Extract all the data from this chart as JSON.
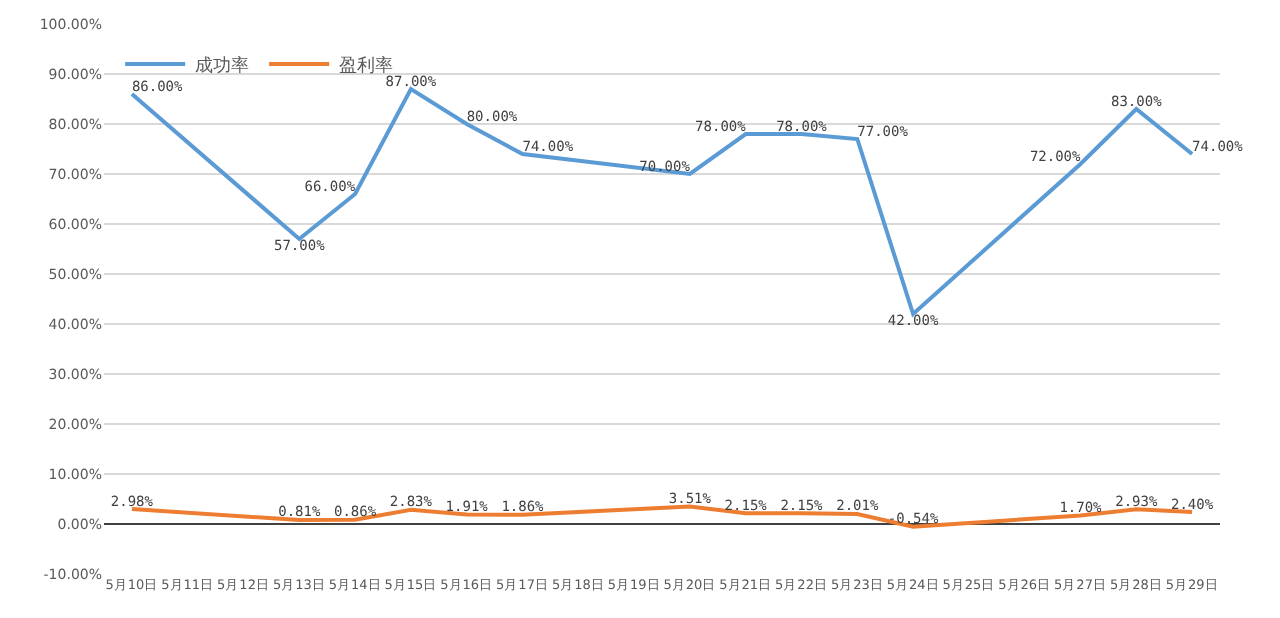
{
  "chart_data": {
    "type": "line",
    "categories": [
      "5月10日",
      "5月11日",
      "5月12日",
      "5月13日",
      "5月14日",
      "5月15日",
      "5月16日",
      "5月17日",
      "5月18日",
      "5月19日",
      "5月20日",
      "5月21日",
      "5月22日",
      "5月23日",
      "5月24日",
      "5月25日",
      "5月26日",
      "5月27日",
      "5月28日",
      "5月29日"
    ],
    "series": [
      {
        "name": "成功率",
        "color": "#5b9bd5",
        "values": [
          86,
          null,
          null,
          57,
          66,
          87,
          80,
          74,
          null,
          null,
          70,
          78,
          78,
          77,
          42,
          null,
          null,
          72,
          83,
          74
        ],
        "value_labels": [
          "86.00%",
          null,
          null,
          "57.00%",
          "66.00%",
          "87.00%",
          "80.00%",
          "74.00%",
          null,
          null,
          "70.00%",
          "78.00%",
          "78.00%",
          "77.00%",
          "42.00%",
          null,
          null,
          "72.00%",
          "83.00%",
          "74.00%"
        ]
      },
      {
        "name": "盈利率",
        "color": "#ed7d31",
        "values": [
          2.98,
          null,
          null,
          0.81,
          0.86,
          2.83,
          1.91,
          1.86,
          null,
          null,
          3.51,
          2.15,
          2.15,
          2.01,
          -0.54,
          null,
          null,
          1.7,
          2.93,
          2.4
        ],
        "value_labels": [
          "2.98%",
          null,
          null,
          "0.81%",
          "0.86%",
          "2.83%",
          "1.91%",
          "1.86%",
          null,
          null,
          "3.51%",
          "2.15%",
          "2.15%",
          "2.01%",
          "-0.54%",
          null,
          null,
          "1.70%",
          "2.93%",
          "2.40%"
        ]
      }
    ],
    "ylim": [
      -10,
      100
    ],
    "yticks": [
      {
        "value": -10,
        "label": "-10.00%"
      },
      {
        "value": 0,
        "label": "0.00%"
      },
      {
        "value": 10,
        "label": "10.00%"
      },
      {
        "value": 20,
        "label": "20.00%"
      },
      {
        "value": 30,
        "label": "30.00%"
      },
      {
        "value": 40,
        "label": "40.00%"
      },
      {
        "value": 50,
        "label": "50.00%"
      },
      {
        "value": 60,
        "label": "60.00%"
      },
      {
        "value": 70,
        "label": "70.00%"
      },
      {
        "value": 80,
        "label": "80.00%"
      },
      {
        "value": 90,
        "label": "90.00%"
      },
      {
        "value": 100,
        "label": "100.00%"
      }
    ],
    "grid": "y",
    "legend": "top left",
    "line_style": "solid",
    "marker": "none"
  }
}
